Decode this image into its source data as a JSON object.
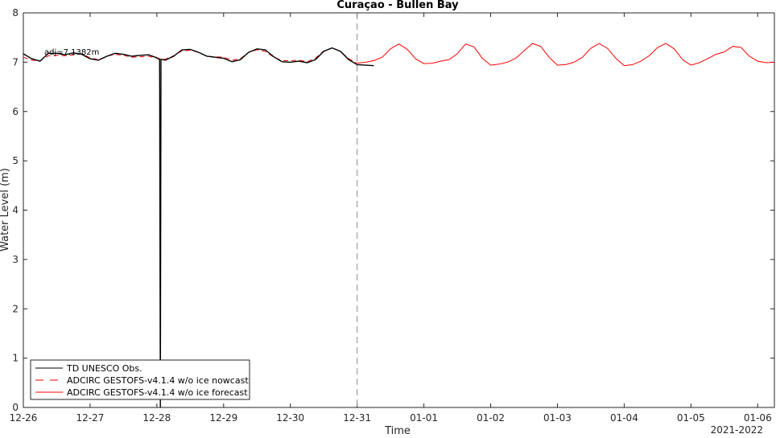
{
  "chart_data": {
    "type": "line",
    "title": "Curaçao - Bullen Bay",
    "xlabel": "Time",
    "ylabel": "Water Level (m)",
    "year_label": "2021-2022",
    "ylim": [
      0,
      8
    ],
    "xlim": [
      "2021-12-26 00:00",
      "2022-01-06 06:00"
    ],
    "x_ticks": [
      "12-26",
      "12-27",
      "12-28",
      "12-29",
      "12-30",
      "12-31",
      "01-01",
      "01-02",
      "01-03",
      "01-04",
      "01-05",
      "01-06"
    ],
    "y_ticks": [
      "0",
      "1",
      "2",
      "3",
      "4",
      "5",
      "6",
      "7",
      "8"
    ],
    "grid": false,
    "legend_position": "bottom-left",
    "annotation": "adj=7.1382m",
    "nowcast_end": "2021-12-31 00:00",
    "series": [
      {
        "name": "TD UNESCO Obs.",
        "color": "#000000",
        "style": "solid",
        "points": [
          [
            "2021-12-26 00:00",
            7.17
          ],
          [
            "2021-12-26 03:00",
            7.07
          ],
          [
            "2021-12-26 06:00",
            7.02
          ],
          [
            "2021-12-26 09:00",
            7.18
          ],
          [
            "2021-12-26 12:00",
            7.18
          ],
          [
            "2021-12-26 15:00",
            7.15
          ],
          [
            "2021-12-26 18:00",
            7.19
          ],
          [
            "2021-12-26 21:00",
            7.16
          ],
          [
            "2021-12-27 00:00",
            7.07
          ],
          [
            "2021-12-27 03:00",
            7.04
          ],
          [
            "2021-12-27 06:00",
            7.12
          ],
          [
            "2021-12-27 09:00",
            7.18
          ],
          [
            "2021-12-27 12:00",
            7.16
          ],
          [
            "2021-12-27 15:00",
            7.12
          ],
          [
            "2021-12-27 18:00",
            7.14
          ],
          [
            "2021-12-27 21:00",
            7.15
          ],
          [
            "2021-12-28 00:00",
            7.09
          ],
          [
            "2021-12-28 01:00",
            7.05
          ],
          [
            "2021-12-28 01:15",
            0.0
          ],
          [
            "2021-12-28 01:30",
            7.06
          ],
          [
            "2021-12-28 03:00",
            7.04
          ],
          [
            "2021-12-28 06:00",
            7.12
          ],
          [
            "2021-12-28 09:00",
            7.25
          ],
          [
            "2021-12-28 12:00",
            7.26
          ],
          [
            "2021-12-28 15:00",
            7.2
          ],
          [
            "2021-12-28 18:00",
            7.12
          ],
          [
            "2021-12-29 00:00",
            7.08
          ],
          [
            "2021-12-29 03:00",
            7.01
          ],
          [
            "2021-12-29 06:00",
            7.05
          ],
          [
            "2021-12-29 09:00",
            7.2
          ],
          [
            "2021-12-29 12:00",
            7.27
          ],
          [
            "2021-12-29 15:00",
            7.25
          ],
          [
            "2021-12-29 18:00",
            7.11
          ],
          [
            "2021-12-29 21:00",
            7.01
          ],
          [
            "2021-12-30 00:00",
            7.0
          ],
          [
            "2021-12-30 03:00",
            7.02
          ],
          [
            "2021-12-30 06:00",
            6.99
          ],
          [
            "2021-12-30 09:00",
            7.05
          ],
          [
            "2021-12-30 12:00",
            7.22
          ],
          [
            "2021-12-30 15:00",
            7.29
          ],
          [
            "2021-12-30 18:00",
            7.22
          ],
          [
            "2021-12-30 21:00",
            7.05
          ],
          [
            "2021-12-31 00:00",
            6.95
          ],
          [
            "2021-12-31 03:00",
            6.94
          ],
          [
            "2021-12-31 06:00",
            6.93
          ]
        ]
      },
      {
        "name": "ADCIRC GESTOFS-v4.1.4 w/o ice nowcast",
        "color": "#ff0000",
        "style": "dashed",
        "points": [
          [
            "2021-12-26 00:00",
            7.1
          ],
          [
            "2021-12-26 03:00",
            7.04
          ],
          [
            "2021-12-26 06:00",
            7.03
          ],
          [
            "2021-12-26 09:00",
            7.13
          ],
          [
            "2021-12-26 12:00",
            7.14
          ],
          [
            "2021-12-26 15:00",
            7.13
          ],
          [
            "2021-12-26 18:00",
            7.15
          ],
          [
            "2021-12-26 21:00",
            7.17
          ],
          [
            "2021-12-27 00:00",
            7.09
          ],
          [
            "2021-12-27 03:00",
            7.05
          ],
          [
            "2021-12-27 06:00",
            7.12
          ],
          [
            "2021-12-27 09:00",
            7.16
          ],
          [
            "2021-12-27 12:00",
            7.14
          ],
          [
            "2021-12-27 15:00",
            7.1
          ],
          [
            "2021-12-27 18:00",
            7.11
          ],
          [
            "2021-12-27 21:00",
            7.12
          ],
          [
            "2021-12-28 00:00",
            7.08
          ],
          [
            "2021-12-28 03:00",
            7.06
          ],
          [
            "2021-12-28 06:00",
            7.13
          ],
          [
            "2021-12-28 09:00",
            7.23
          ],
          [
            "2021-12-28 12:00",
            7.24
          ],
          [
            "2021-12-28 15:00",
            7.2
          ],
          [
            "2021-12-28 18:00",
            7.12
          ],
          [
            "2021-12-29 00:00",
            7.1
          ],
          [
            "2021-12-29 03:00",
            7.04
          ],
          [
            "2021-12-29 06:00",
            7.07
          ],
          [
            "2021-12-29 09:00",
            7.2
          ],
          [
            "2021-12-29 12:00",
            7.25
          ],
          [
            "2021-12-29 15:00",
            7.22
          ],
          [
            "2021-12-29 18:00",
            7.1
          ],
          [
            "2021-12-29 21:00",
            7.03
          ],
          [
            "2021-12-30 00:00",
            7.03
          ],
          [
            "2021-12-30 03:00",
            7.04
          ],
          [
            "2021-12-30 06:00",
            7.01
          ],
          [
            "2021-12-30 09:00",
            7.08
          ],
          [
            "2021-12-30 12:00",
            7.23
          ],
          [
            "2021-12-30 15:00",
            7.29
          ],
          [
            "2021-12-30 18:00",
            7.22
          ],
          [
            "2021-12-30 21:00",
            7.07
          ],
          [
            "2021-12-31 00:00",
            6.98
          ]
        ]
      },
      {
        "name": "ADCIRC GESTOFS-v4.1.4 w/o ice forecast",
        "color": "#ff0000",
        "style": "solid",
        "points": [
          [
            "2021-12-31 00:00",
            6.98
          ],
          [
            "2021-12-31 03:00",
            7.0
          ],
          [
            "2021-12-31 06:00",
            7.03
          ],
          [
            "2021-12-31 09:00",
            7.1
          ],
          [
            "2021-12-31 12:00",
            7.27
          ],
          [
            "2021-12-31 15:00",
            7.37
          ],
          [
            "2021-12-31 18:00",
            7.26
          ],
          [
            "2021-12-31 21:00",
            7.07
          ],
          [
            "2022-01-01 00:00",
            6.97
          ],
          [
            "2022-01-01 03:00",
            6.98
          ],
          [
            "2022-01-01 06:00",
            7.02
          ],
          [
            "2022-01-01 09:00",
            7.05
          ],
          [
            "2022-01-01 12:00",
            7.17
          ],
          [
            "2022-01-01 15:00",
            7.37
          ],
          [
            "2022-01-01 18:00",
            7.31
          ],
          [
            "2022-01-01 21:00",
            7.08
          ],
          [
            "2022-01-02 00:00",
            6.94
          ],
          [
            "2022-01-02 03:00",
            6.96
          ],
          [
            "2022-01-02 06:00",
            7.0
          ],
          [
            "2022-01-02 09:00",
            7.08
          ],
          [
            "2022-01-02 12:00",
            7.23
          ],
          [
            "2022-01-02 15:00",
            7.38
          ],
          [
            "2022-01-02 18:00",
            7.32
          ],
          [
            "2022-01-02 21:00",
            7.1
          ],
          [
            "2022-01-03 00:00",
            6.94
          ],
          [
            "2022-01-03 03:00",
            6.95
          ],
          [
            "2022-01-03 06:00",
            7.0
          ],
          [
            "2022-01-03 09:00",
            7.1
          ],
          [
            "2022-01-03 12:00",
            7.28
          ],
          [
            "2022-01-03 15:00",
            7.38
          ],
          [
            "2022-01-03 18:00",
            7.28
          ],
          [
            "2022-01-03 21:00",
            7.08
          ],
          [
            "2022-01-04 00:00",
            6.93
          ],
          [
            "2022-01-04 03:00",
            6.95
          ],
          [
            "2022-01-04 06:00",
            7.02
          ],
          [
            "2022-01-04 09:00",
            7.13
          ],
          [
            "2022-01-04 12:00",
            7.3
          ],
          [
            "2022-01-04 15:00",
            7.38
          ],
          [
            "2022-01-04 18:00",
            7.27
          ],
          [
            "2022-01-04 21:00",
            7.05
          ],
          [
            "2022-01-05 00:00",
            6.94
          ],
          [
            "2022-01-05 03:00",
            6.99
          ],
          [
            "2022-01-05 06:00",
            7.07
          ],
          [
            "2022-01-05 09:00",
            7.16
          ],
          [
            "2022-01-05 12:00",
            7.21
          ],
          [
            "2022-01-05 15:00",
            7.32
          ],
          [
            "2022-01-05 18:00",
            7.3
          ],
          [
            "2022-01-05 21:00",
            7.12
          ],
          [
            "2022-01-06 00:00",
            7.02
          ],
          [
            "2022-01-06 03:00",
            6.99
          ],
          [
            "2022-01-06 06:00",
            7.0
          ]
        ]
      }
    ]
  }
}
